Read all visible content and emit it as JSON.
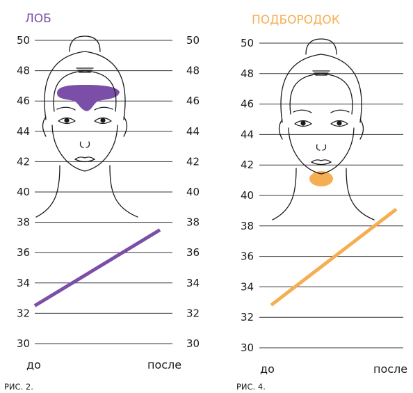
{
  "chart_data": [
    {
      "type": "line",
      "title": "ЛОБ",
      "caption": "РИС. 2.",
      "categories": [
        "до",
        "после"
      ],
      "series": [
        {
          "values": [
            32.5,
            37.5
          ]
        }
      ],
      "ylim": [
        30,
        50
      ],
      "yticks": [
        30,
        32,
        34,
        36,
        38,
        40,
        42,
        44,
        46,
        48,
        50
      ],
      "grid": true,
      "highlight_zone": "forehead",
      "color": "#7b4fa8"
    },
    {
      "type": "line",
      "title": "ПОДБОРОДОК",
      "caption": "РИС. 4.",
      "categories": [
        "до",
        "после"
      ],
      "series": [
        {
          "values": [
            32.8,
            39.1
          ]
        }
      ],
      "ylim": [
        30,
        50
      ],
      "yticks": [
        30,
        32,
        34,
        36,
        38,
        40,
        42,
        44,
        46,
        48,
        50
      ],
      "grid": true,
      "highlight_zone": "chin",
      "color": "#f6ae52"
    }
  ]
}
